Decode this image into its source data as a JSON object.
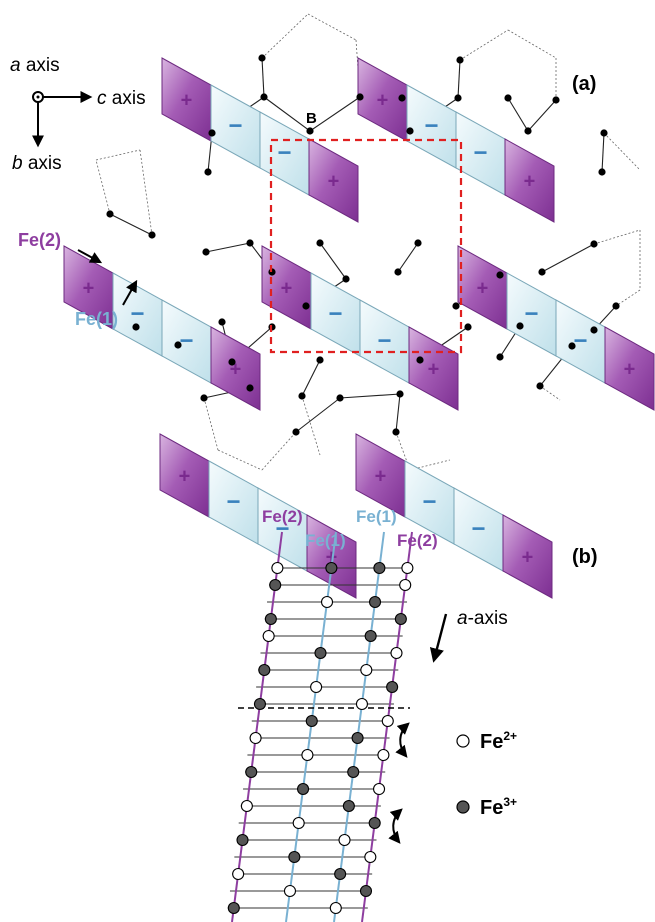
{
  "panel_a": {
    "label": "(a)",
    "axis_a_letter": "a",
    "axis_a_word": " axis",
    "axis_b_letter": "b",
    "axis_b_word": " axis",
    "axis_c_letter": "c",
    "axis_c_word": " axis",
    "label_fe2": "Fe(2)",
    "label_fe1": "Fe(1)",
    "label_b": "B",
    "plus_sign": "+",
    "minus_sign": "−"
  },
  "panel_b": {
    "label": "(b)",
    "col_fe2_left": "Fe(2)",
    "col_fe1_left": "Fe(1)",
    "col_fe1_right": "Fe(1)",
    "col_fe2_right": "Fe(2)",
    "axis_letter": "a",
    "axis_word": "-axis",
    "legend": [
      {
        "name": "Fe",
        "charge": "2+",
        "fill": "open"
      },
      {
        "name": "Fe",
        "charge": "3+",
        "fill": "filled"
      }
    ]
  },
  "colors": {
    "fe2_purple": "#8e3ea0",
    "fe2_fill": "#a85bb8",
    "fe1_blue": "#79b1d2",
    "fe1_fill": "#dff0f5",
    "minus_blue": "#3a82bd",
    "dashed_box": "#e02020",
    "filled_site": "#555555"
  }
}
